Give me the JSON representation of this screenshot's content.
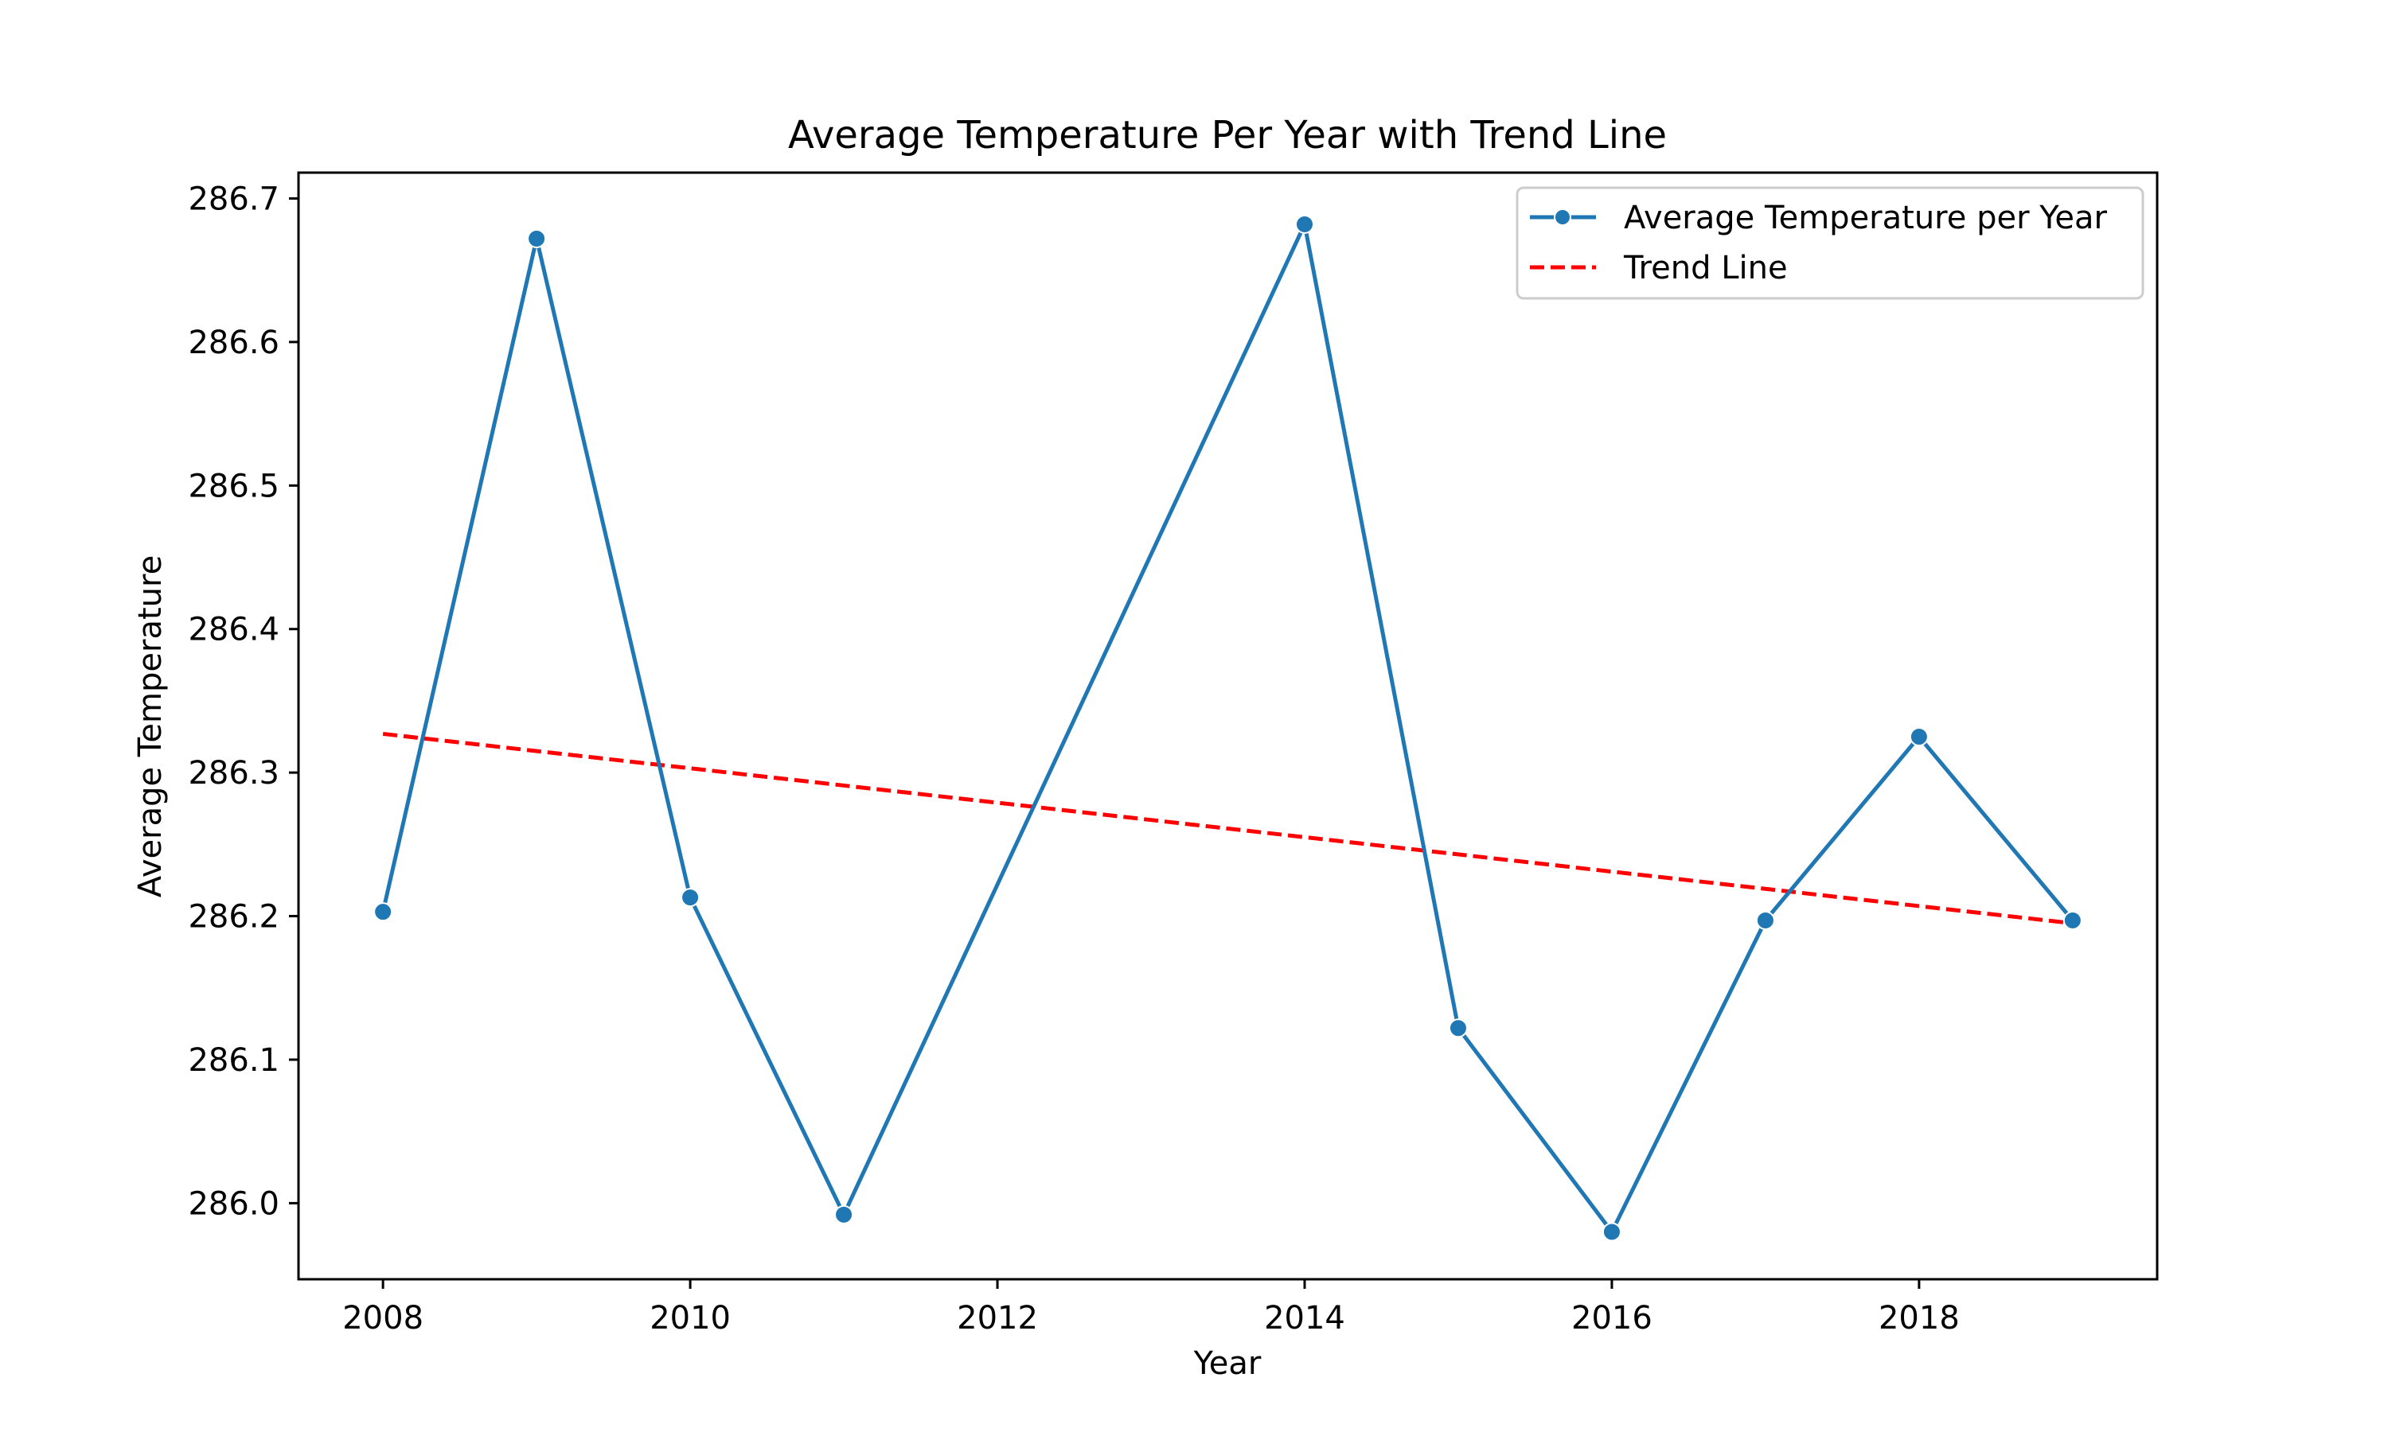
{
  "chart_data": {
    "type": "line",
    "title": "Average Temperature Per Year with Trend Line",
    "xlabel": "Year",
    "ylabel": "Average Temperature",
    "xlim": [
      2007.45,
      2019.55
    ],
    "ylim": [
      285.947,
      286.718
    ],
    "x_ticks": [
      2008,
      2010,
      2012,
      2014,
      2016,
      2018
    ],
    "y_ticks": [
      286.0,
      286.1,
      286.2,
      286.3,
      286.4,
      286.5,
      286.6,
      286.7
    ],
    "x_tick_labels": [
      "2008",
      "2010",
      "2012",
      "2014",
      "2016",
      "2018"
    ],
    "y_tick_labels": [
      "286.0",
      "286.1",
      "286.2",
      "286.3",
      "286.4",
      "286.5",
      "286.6",
      "286.7"
    ],
    "grid": false,
    "legend_position": "upper right",
    "series": [
      {
        "name": "Average Temperature per Year",
        "style": "solid-with-markers",
        "color": "#1f77b4",
        "x": [
          2008,
          2009,
          2010,
          2011,
          2012,
          2013,
          2014,
          2015,
          2016,
          2017,
          2018,
          2019
        ],
        "y": [
          286.203,
          286.672,
          286.213,
          285.992,
          null,
          null,
          286.682,
          286.122,
          285.98,
          286.197,
          286.325,
          286.197
        ]
      },
      {
        "name": "Trend Line",
        "style": "dashed",
        "color": "#ff0000",
        "x": [
          2008,
          2019
        ],
        "y": [
          286.327,
          286.195
        ]
      }
    ]
  }
}
